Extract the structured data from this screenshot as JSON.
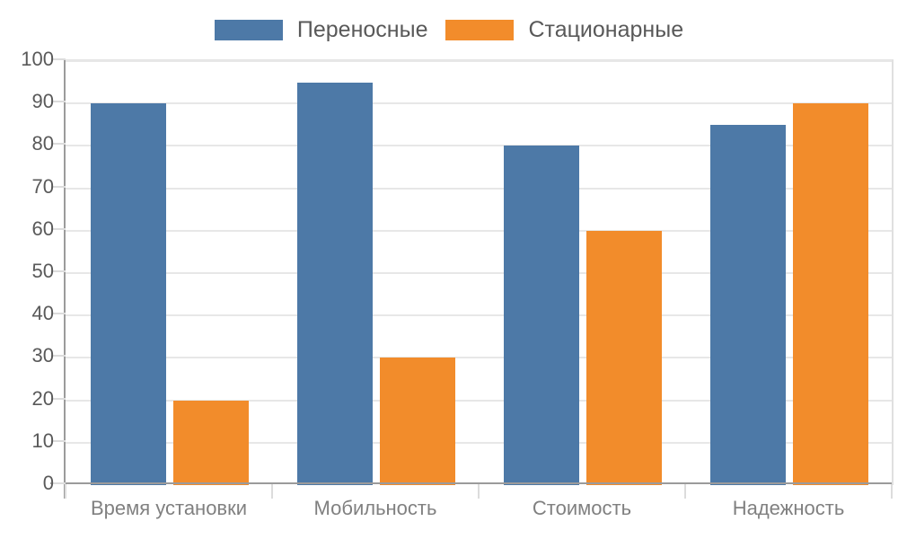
{
  "chart_data": {
    "type": "bar",
    "title": "",
    "xlabel": "",
    "ylabel": "",
    "categories": [
      "Время установки",
      "Мобильность",
      "Стоимость",
      "Надежность"
    ],
    "series": [
      {
        "name": "Переносные",
        "color": "#4d79a7",
        "values": [
          90,
          95,
          80,
          85
        ]
      },
      {
        "name": "Стационарные",
        "color": "#f28c2b",
        "values": [
          20,
          30,
          60,
          90
        ]
      }
    ],
    "ylim": [
      0,
      100
    ],
    "ytick_step": 10,
    "ytick_labels": [
      "0",
      "10",
      "20",
      "30",
      "40",
      "50",
      "60",
      "70",
      "80",
      "90",
      "100"
    ],
    "grid": "horizontal",
    "legend_position": "top-center"
  },
  "style_colors": {
    "axis_line": "#9b9b9b",
    "gridline": "#e7e7e7",
    "tick_mark": "#dcdcdc",
    "label_text": "#595959"
  }
}
